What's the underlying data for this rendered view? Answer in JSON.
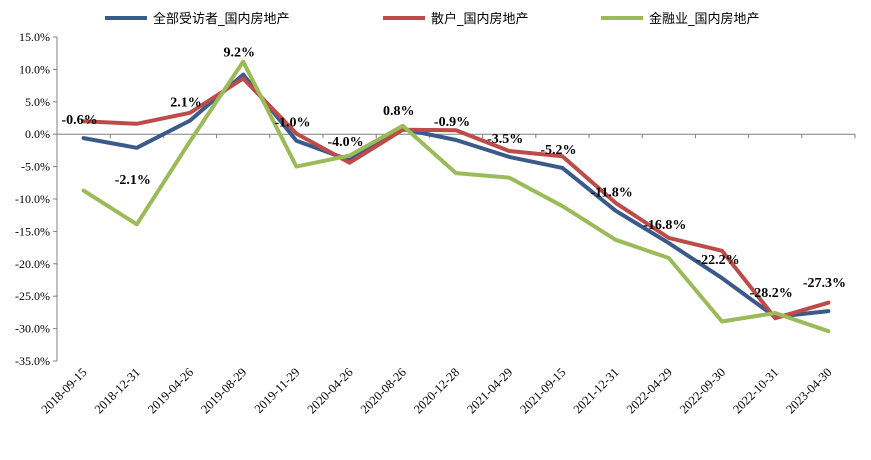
{
  "chart_data": {
    "type": "line",
    "title": "",
    "xlabel": "",
    "ylabel": "",
    "ylim": [
      -35,
      15
    ],
    "ytick_step": 5,
    "ytick_format": "percent_1dp",
    "grid": false,
    "legend_position": "top",
    "categories": [
      "2018-09-15",
      "2018-12-31",
      "2019-04-26",
      "2019-08-29",
      "2019-11-29",
      "2020-04-26",
      "2020-08-26",
      "2020-12-28",
      "2021-04-29",
      "2021-09-15",
      "2021-12-31",
      "2022-04-29",
      "2022-09-30",
      "2022-10-31",
      "2023-04-30"
    ],
    "series": [
      {
        "name": "全部受访者_国内房地产",
        "color": "#3A5A8C",
        "values": [
          -0.6,
          -2.1,
          2.1,
          9.2,
          -1.0,
          -4.0,
          0.8,
          -0.9,
          -3.5,
          -5.2,
          -11.8,
          -16.8,
          -22.2,
          -28.2,
          -27.3
        ],
        "labels": [
          "-0.6%",
          "-2.1%",
          "2.1%",
          "9.2%",
          "-1.0%",
          "-4.0%",
          "0.8%",
          "-0.9%",
          "-3.5%",
          "-5.2%",
          "-11.8%",
          "-16.8%",
          "-22.2%",
          "-28.2%",
          "-27.3%"
        ]
      },
      {
        "name": "散户_国内房地产",
        "color": "#BE4B48",
        "values": [
          2.0,
          1.6,
          3.3,
          8.6,
          0.1,
          -4.4,
          0.7,
          0.6,
          -2.6,
          -3.4,
          -10.6,
          -16.0,
          -18.0,
          -28.4,
          -26.0
        ]
      },
      {
        "name": "金融业_国内房地产",
        "color": "#9BBB59",
        "values": [
          -8.7,
          -13.9,
          -1.1,
          11.2,
          -5.0,
          -3.3,
          1.3,
          -6.0,
          -6.7,
          -11.1,
          -16.3,
          -19.1,
          -28.9,
          -27.6,
          -30.4
        ]
      }
    ]
  }
}
